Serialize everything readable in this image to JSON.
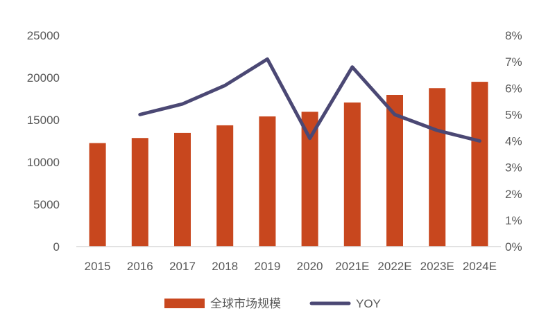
{
  "chart_data": {
    "type": "bar",
    "title": "",
    "xlabel": "",
    "ylabel": "",
    "categories": [
      "2015",
      "2016",
      "2017",
      "2018",
      "2019",
      "2020",
      "2021E",
      "2022E",
      "2023E",
      "2024E"
    ],
    "series": [
      {
        "name": "全球市场规模",
        "type": "bar",
        "axis": "left",
        "color": "#c8471e",
        "values": [
          12250,
          12850,
          13450,
          14350,
          15400,
          15950,
          17050,
          17950,
          18750,
          19500
        ]
      },
      {
        "name": "YOY",
        "type": "line",
        "axis": "right",
        "color": "#4b4874",
        "values": [
          null,
          0.05,
          0.054,
          0.061,
          0.071,
          0.041,
          0.068,
          0.05,
          0.044,
          0.04
        ]
      }
    ],
    "ylim": [
      0,
      25000
    ],
    "yticks": [
      "0",
      "5000",
      "10000",
      "15000",
      "20000",
      "25000"
    ],
    "y2lim": [
      0,
      0.08
    ],
    "y2ticks": [
      "0%",
      "1%",
      "2%",
      "3%",
      "4%",
      "5%",
      "6%",
      "7%",
      "8%"
    ],
    "grid": false,
    "legend_position": "bottom-center"
  }
}
